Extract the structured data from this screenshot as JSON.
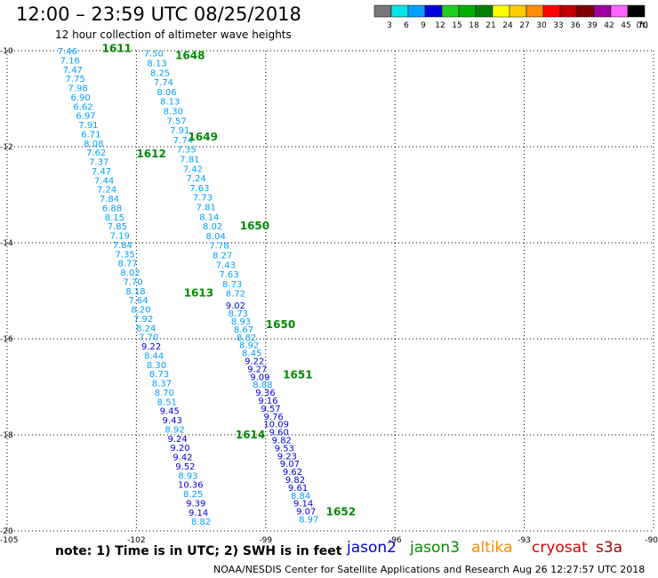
{
  "header": {
    "title": "12:00 – 23:59 UTC 08/25/2018",
    "subtitle": "12 hour collection of altimeter wave heights"
  },
  "colorbar": {
    "unit": "(ft)",
    "bins": [
      {
        "label": "3",
        "color": "#777777"
      },
      {
        "label": "6",
        "color": "#00e5e5"
      },
      {
        "label": "9",
        "color": "#00a0ff"
      },
      {
        "label": "12",
        "color": "#0000e0"
      },
      {
        "label": "15",
        "color": "#20d020"
      },
      {
        "label": "18",
        "color": "#00b000"
      },
      {
        "label": "21",
        "color": "#008000"
      },
      {
        "label": "24",
        "color": "#ffff00"
      },
      {
        "label": "27",
        "color": "#ffcc00"
      },
      {
        "label": "30",
        "color": "#ff8c00"
      },
      {
        "label": "33",
        "color": "#ff0000"
      },
      {
        "label": "36",
        "color": "#c00000"
      },
      {
        "label": "39",
        "color": "#800000"
      },
      {
        "label": "42",
        "color": "#a000a0"
      },
      {
        "label": "45",
        "color": "#ff66ff"
      },
      {
        "label": "70",
        "color": "#000000"
      }
    ]
  },
  "note": "note: 1) Time is in UTC; 2) SWH is in feet",
  "satellites": [
    {
      "name": "jason2",
      "color": "#0000cc"
    },
    {
      "name": "jason3",
      "color": "#008a00"
    },
    {
      "name": "altika",
      "color": "#ff8c00"
    },
    {
      "name": "cryosat",
      "color": "#dd0000"
    },
    {
      "name": "s3a",
      "color": "#990000"
    }
  ],
  "credit": "NOAA/NESDIS Center for Satellite Applications and Research    Aug 26 12:27:57 UTC 2018",
  "chart_data": {
    "type": "scatter",
    "xlim": [
      -105,
      -90
    ],
    "ylim": [
      -20,
      -10
    ],
    "x_ticks": [
      {
        "value": -105,
        "label": "-105"
      },
      {
        "value": -102,
        "label": "-102"
      },
      {
        "value": -99,
        "label": "-99"
      },
      {
        "value": -96,
        "label": "-96"
      },
      {
        "value": -93,
        "label": "-93"
      },
      {
        "value": -90,
        "label": "-90"
      }
    ],
    "y_ticks": [
      {
        "value": -10,
        "label": "-10"
      },
      {
        "value": -12,
        "label": "-12"
      },
      {
        "value": -14,
        "label": "-14"
      },
      {
        "value": -16,
        "label": "-16"
      },
      {
        "value": -18,
        "label": "-18"
      },
      {
        "value": -20,
        "label": "-20"
      }
    ],
    "grid": "dotted",
    "passes": [
      {
        "label": "1611",
        "x": -102.8,
        "y": -9.95
      },
      {
        "label": "1612",
        "x": -102.0,
        "y": -12.15
      },
      {
        "label": "1613",
        "x": -100.9,
        "y": -15.05
      },
      {
        "label": "1614",
        "x": -99.7,
        "y": -18.0
      },
      {
        "label": "1648",
        "x": -101.1,
        "y": -10.1
      },
      {
        "label": "1649",
        "x": -100.8,
        "y": -11.8
      },
      {
        "label": "1650",
        "x": -99.6,
        "y": -13.65
      },
      {
        "label": "1650",
        "x": -99.0,
        "y": -15.7
      },
      {
        "label": "1651",
        "x": -98.6,
        "y": -16.75
      },
      {
        "label": "1652",
        "x": -97.6,
        "y": -19.6
      }
    ],
    "series": [
      {
        "track": "A",
        "start": [
          -103.6,
          -10.0
        ],
        "end": [
          -100.5,
          -19.8
        ],
        "values": [
          7.46,
          7.16,
          7.47,
          7.75,
          7.98,
          6.9,
          6.62,
          6.97,
          7.91,
          6.71,
          8.08,
          7.62,
          7.37,
          7.47,
          7.44,
          7.24,
          7.84,
          6.88,
          8.15,
          7.85,
          7.19,
          7.84,
          7.35,
          8.77,
          8.02,
          7.7,
          8.18,
          7.64,
          8.2,
          7.92,
          8.24,
          7.7,
          9.22,
          8.44,
          8.3,
          8.73,
          8.37,
          8.7,
          8.51,
          9.45,
          9.43,
          8.92,
          9.24,
          9.2,
          9.42,
          9.52,
          8.93,
          10.36,
          8.25,
          9.39,
          9.14,
          8.82
        ]
      },
      {
        "track": "B",
        "start": [
          -101.6,
          -10.05
        ],
        "end": [
          -99.7,
          -15.05
        ],
        "values": [
          7.5,
          8.13,
          8.25,
          7.74,
          8.06,
          8.13,
          8.3,
          7.57,
          7.91,
          7.74,
          7.35,
          7.81,
          7.42,
          7.24,
          7.63,
          7.73,
          7.81,
          8.14,
          8.02,
          8.04,
          7.78,
          8.27,
          7.43,
          7.63,
          8.73,
          8.72
        ]
      },
      {
        "track": "C",
        "start": [
          -99.7,
          -15.3
        ],
        "end": [
          -98.0,
          -19.75
        ],
        "values": [
          9.02,
          8.73,
          8.93,
          8.67,
          8.82,
          8.92,
          8.45,
          9.22,
          9.27,
          9.09,
          8.88,
          9.36,
          9.16,
          9.57,
          9.76,
          10.09,
          9.6,
          9.82,
          9.53,
          9.23,
          9.07,
          9.62,
          9.82,
          9.61,
          8.84,
          9.14,
          9.07,
          8.97
        ]
      }
    ]
  }
}
